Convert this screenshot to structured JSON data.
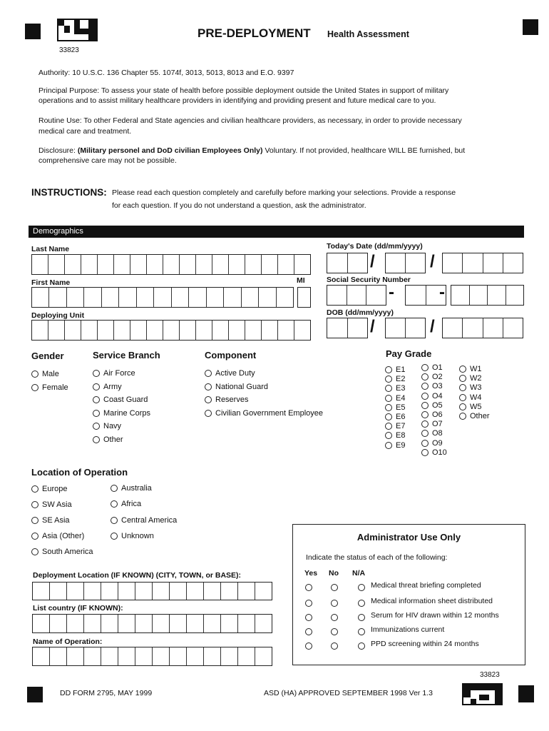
{
  "header": {
    "form_number_top": "33823",
    "title": "PRE-DEPLOYMENT",
    "subtitle": "Health Assessment"
  },
  "privacy": {
    "authority": "Authority:  10 U.S.C. 136 Chapter 55.  1074f, 3013, 5013, 8013 and E.O. 9397",
    "purpose_1": "Principal Purpose:  To assess your state of health before possible deployment outside the United States in support of military",
    "purpose_2": "operations and to assist military healthcare providers in identifying and providing present and future medical care to you.",
    "routine_1": "Routine Use:  To other Federal and State agencies and civilian healthcare providers, as necessary, in order to provide necessary",
    "routine_2": "medical care and treatment.",
    "disclosure_label": "Disclosure:",
    "disclosure_bold": "(Military personel and DoD civilian Employees Only)",
    "disclosure_rest": "Voluntary.  If not provided, healthcare WILL BE furnished, but",
    "disclosure_2": "comprehensive care may not be possible."
  },
  "instructions": {
    "label": "INSTRUCTIONS:",
    "line_1": "Please read each question completely and carefully before marking your selections.  Provide a response",
    "line_2": "for each question.  If you do not understand a question, ask the administrator."
  },
  "demographics": {
    "section_title": "Demographics",
    "last_name": "Last Name",
    "first_name": "First Name",
    "mi": "MI",
    "deploying_unit": "Deploying Unit",
    "todays_date": "Today's Date (dd/mm/yyyy)",
    "ssn": "Social Security Number",
    "dob": "DOB (dd/mm/yyyy)",
    "slash": "/",
    "dash": "-"
  },
  "gender": {
    "title": "Gender",
    "options": [
      "Male",
      "Female"
    ]
  },
  "service_branch": {
    "title": "Service Branch",
    "options": [
      "Air Force",
      "Army",
      "Coast Guard",
      "Marine Corps",
      "Navy",
      "Other"
    ]
  },
  "component": {
    "title": "Component",
    "options": [
      "Active Duty",
      "National Guard",
      "Reserves",
      "Civilian Government Employee"
    ]
  },
  "pay_grade": {
    "title": "Pay Grade",
    "enlisted": [
      "E1",
      "E2",
      "E3",
      "E4",
      "E5",
      "E6",
      "E7",
      "E8",
      "E9"
    ],
    "officer": [
      "O1",
      "O2",
      "O3",
      "O4",
      "O5",
      "O6",
      "O7",
      "O8",
      "O9",
      "O10"
    ],
    "warrant": [
      "W1",
      "W2",
      "W3",
      "W4",
      "W5",
      "Other"
    ]
  },
  "location": {
    "title": "Location of Operation",
    "col1": [
      "Europe",
      "SW Asia",
      "SE Asia",
      "Asia (Other)",
      "South America"
    ],
    "col2": [
      "Australia",
      "Africa",
      "Central America",
      "Unknown"
    ]
  },
  "deployment": {
    "location_label": "Deployment Location (IF KNOWN) (CITY, TOWN, or BASE):",
    "country_label": "List country (IF KNOWN):",
    "operation_label": "Name of Operation:"
  },
  "admin": {
    "title": "Administrator Use Only",
    "instruction": "Indicate the status of each of the following:",
    "col_yes": "Yes",
    "col_no": "No",
    "col_na": "N/A",
    "items": [
      "Medical threat briefing completed",
      "Medical information sheet distributed",
      "Serum for HIV drawn within 12 months",
      "Immunizations current",
      "PPD screening within 24 months"
    ]
  },
  "footer": {
    "form_number_bottom": "33823",
    "form_id": "DD FORM 2795, MAY 1999",
    "approval": "ASD (HA) APPROVED SEPTEMBER 1998 Ver 1.3"
  }
}
